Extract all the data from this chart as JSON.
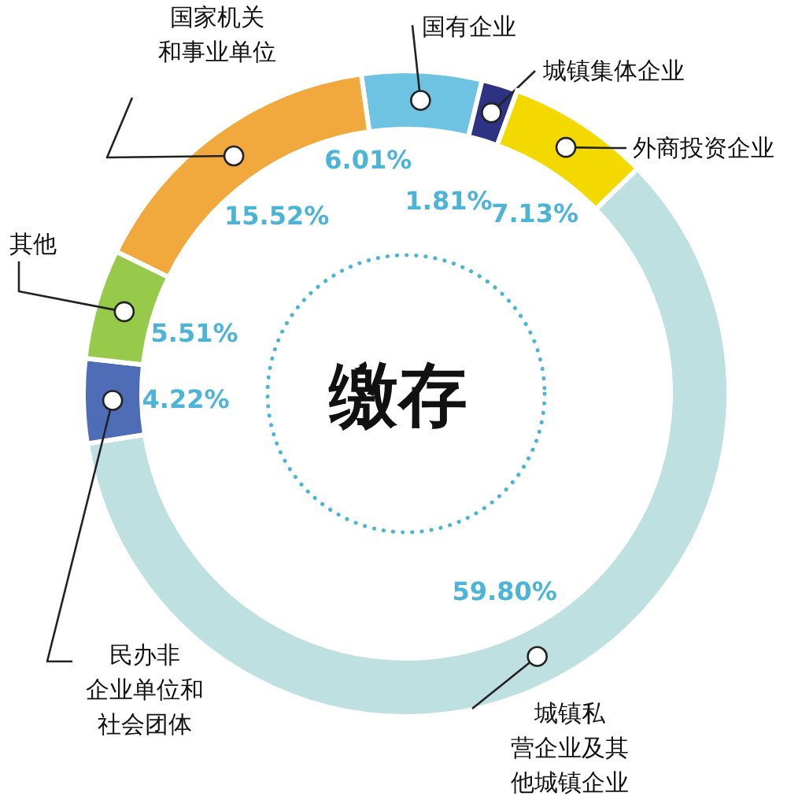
{
  "chart_data": {
    "type": "donut",
    "title": "缴存",
    "categories": [
      "国有企业",
      "城镇集体企业",
      "外商投资企业",
      "城镇私营企业及其他城镇企业",
      "民办非企业单位和社会团体",
      "其他",
      "国家机关和事业单位"
    ],
    "values": [
      6.01,
      1.81,
      7.13,
      59.8,
      4.22,
      5.51,
      15.52
    ],
    "value_labels": [
      "6.01%",
      "1.81%",
      "7.13%",
      "59.80%",
      "4.22%",
      "5.51%",
      "15.52%"
    ],
    "colors": [
      "#6ec3e2",
      "#2d3283",
      "#f3d900",
      "#bfe0e1",
      "#4f6db7",
      "#97c94b",
      "#f1a93d"
    ]
  }
}
